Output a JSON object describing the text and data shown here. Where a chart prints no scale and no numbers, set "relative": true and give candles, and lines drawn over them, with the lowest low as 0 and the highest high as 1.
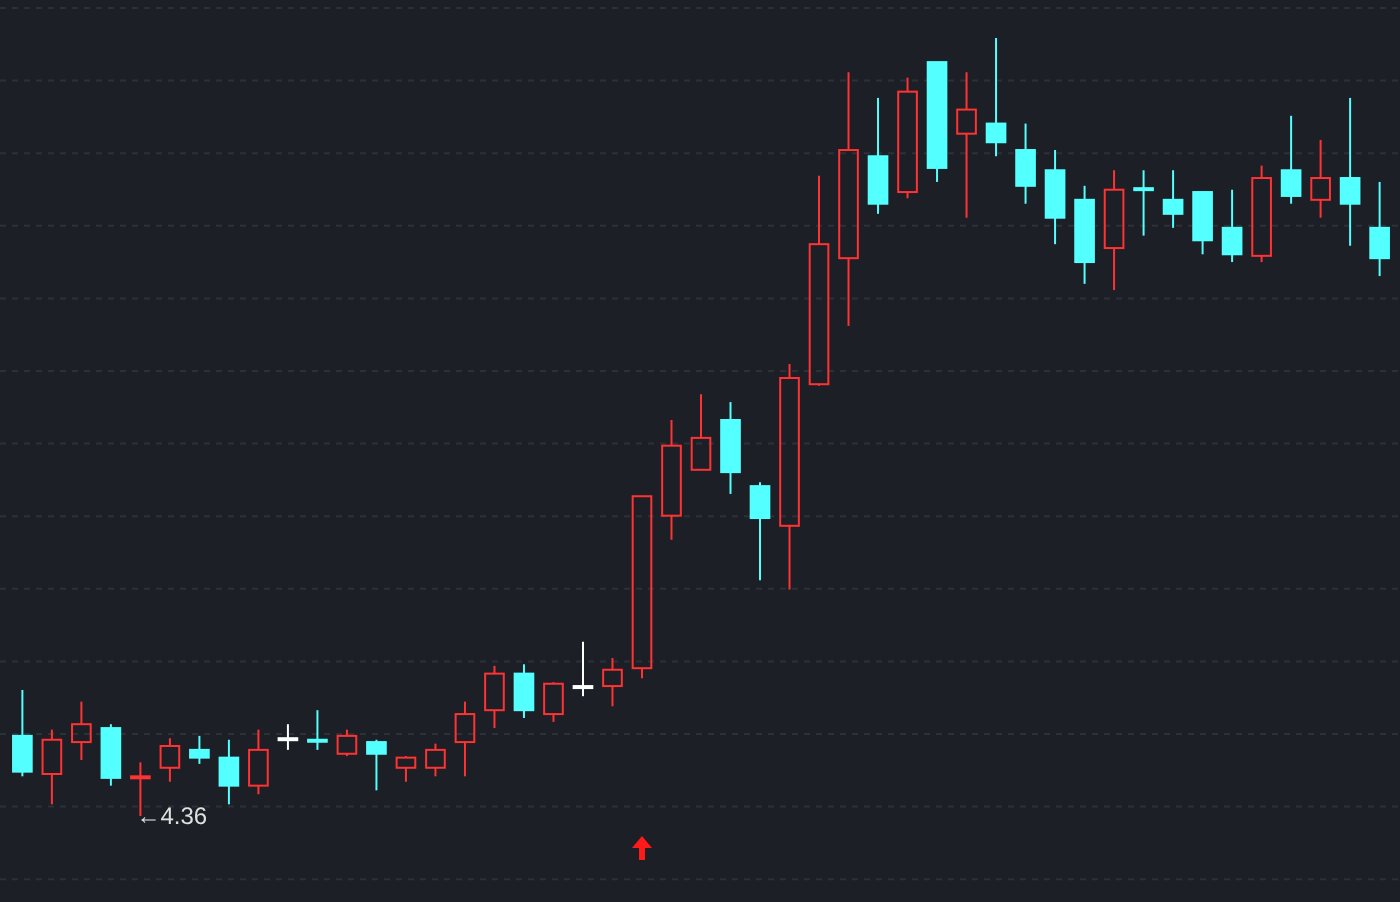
{
  "chart_data": {
    "type": "candlestick",
    "relative": true,
    "grid": "y",
    "categories": [
      null,
      null,
      null,
      null,
      null,
      null,
      null,
      null,
      null,
      null,
      null,
      null,
      null,
      null,
      null,
      null,
      null,
      null,
      null,
      null,
      null,
      null,
      null,
      null,
      null,
      null,
      null,
      null,
      null,
      null,
      null,
      null,
      null,
      null,
      null,
      null,
      null,
      null,
      null,
      null,
      null,
      null,
      null,
      null,
      null,
      null,
      null
    ],
    "ohlc": [
      [
        0.103,
        0.162,
        0.051,
        0.057
      ],
      [
        0.054,
        0.111,
        0.015,
        0.098
      ],
      [
        0.095,
        0.147,
        0.072,
        0.118
      ],
      [
        0.113,
        0.118,
        0.039,
        0.049
      ],
      [
        0.049,
        0.069,
        0,
        0.051
      ],
      [
        0.062,
        0.1,
        0.044,
        0.09
      ],
      [
        0.085,
        0.103,
        0.067,
        0.075
      ],
      [
        0.075,
        0.098,
        0.015,
        0.039
      ],
      [
        0.039,
        0.111,
        0.028,
        0.085
      ],
      [
        0.1,
        0.118,
        0.085,
        0.1
      ],
      [
        0.098,
        0.136,
        0.085,
        0.098
      ],
      [
        0.08,
        0.111,
        0.077,
        0.103
      ],
      [
        0.095,
        0.098,
        0.033,
        0.08
      ],
      [
        0.062,
        0.077,
        0.044,
        0.075
      ],
      [
        0.062,
        0.093,
        0.051,
        0.085
      ],
      [
        0.095,
        0.147,
        0.051,
        0.131
      ],
      [
        0.136,
        0.193,
        0.113,
        0.183
      ],
      [
        0.183,
        0.195,
        0.126,
        0.136
      ],
      [
        0.131,
        0.172,
        0.121,
        0.17
      ],
      [
        0.167,
        0.224,
        0.154,
        0.167
      ],
      [
        0.167,
        0.203,
        0.141,
        0.188
      ],
      [
        0.19,
        0.411,
        0.177,
        0.411
      ],
      [
        0.386,
        0.509,
        0.355,
        0.476
      ],
      [
        0.445,
        0.542,
        0.445,
        0.486
      ],
      [
        0.509,
        0.532,
        0.414,
        0.442
      ],
      [
        0.424,
        0.429,
        0.303,
        0.383
      ],
      [
        0.373,
        0.581,
        0.291,
        0.563
      ],
      [
        0.555,
        0.823,
        0.553,
        0.735
      ],
      [
        0.717,
        0.956,
        0.63,
        0.856
      ],
      [
        0.848,
        0.923,
        0.774,
        0.787
      ],
      [
        0.802,
        0.949,
        0.794,
        0.931
      ],
      [
        0.969,
        0.969,
        0.815,
        0.833
      ],
      [
        0.877,
        0.956,
        0.769,
        0.908
      ],
      [
        0.89,
        1,
        0.848,
        0.866
      ],
      [
        0.856,
        0.89,
        0.787,
        0.81
      ],
      [
        0.83,
        0.856,
        0.735,
        0.769
      ],
      [
        0.792,
        0.81,
        0.684,
        0.712
      ],
      [
        0.73,
        0.83,
        0.676,
        0.805
      ],
      [
        0.807,
        0.83,
        0.746,
        0.805
      ],
      [
        0.792,
        0.83,
        0.756,
        0.774
      ],
      [
        0.802,
        0.802,
        0.722,
        0.74
      ],
      [
        0.756,
        0.805,
        0.712,
        0.722
      ],
      [
        0.72,
        0.836,
        0.712,
        0.82
      ],
      [
        0.83,
        0.9,
        0.787,
        0.797
      ],
      [
        0.792,
        0.869,
        0.769,
        0.82
      ],
      [
        0.82,
        0.923,
        0.733,
        0.787
      ],
      [
        0.756,
        0.815,
        0.694,
        0.717
      ]
    ],
    "colors": [
      "#54ffff",
      "#ff3333",
      "#ff3333",
      "#54ffff",
      "#ff3333",
      "#ff3333",
      "#54ffff",
      "#54ffff",
      "#ff3333",
      "#ffffff",
      "#54ffff",
      "#ff3333",
      "#54ffff",
      "#ff3333",
      "#ff3333",
      "#ff3333",
      "#ff3333",
      "#54ffff",
      "#ff3333",
      "#ffffff",
      "#ff3333",
      "#ff3333",
      "#ff3333",
      "#ff3333",
      "#54ffff",
      "#54ffff",
      "#ff3333",
      "#ff3333",
      "#ff3333",
      "#54ffff",
      "#ff3333",
      "#54ffff",
      "#ff3333",
      "#54ffff",
      "#54ffff",
      "#54ffff",
      "#54ffff",
      "#ff3333",
      "#54ffff",
      "#54ffff",
      "#54ffff",
      "#54ffff",
      "#ff3333",
      "#54ffff",
      "#ff3333",
      "#54ffff",
      "#54ffff"
    ],
    "annotations": [
      "←4.36"
    ]
  }
}
